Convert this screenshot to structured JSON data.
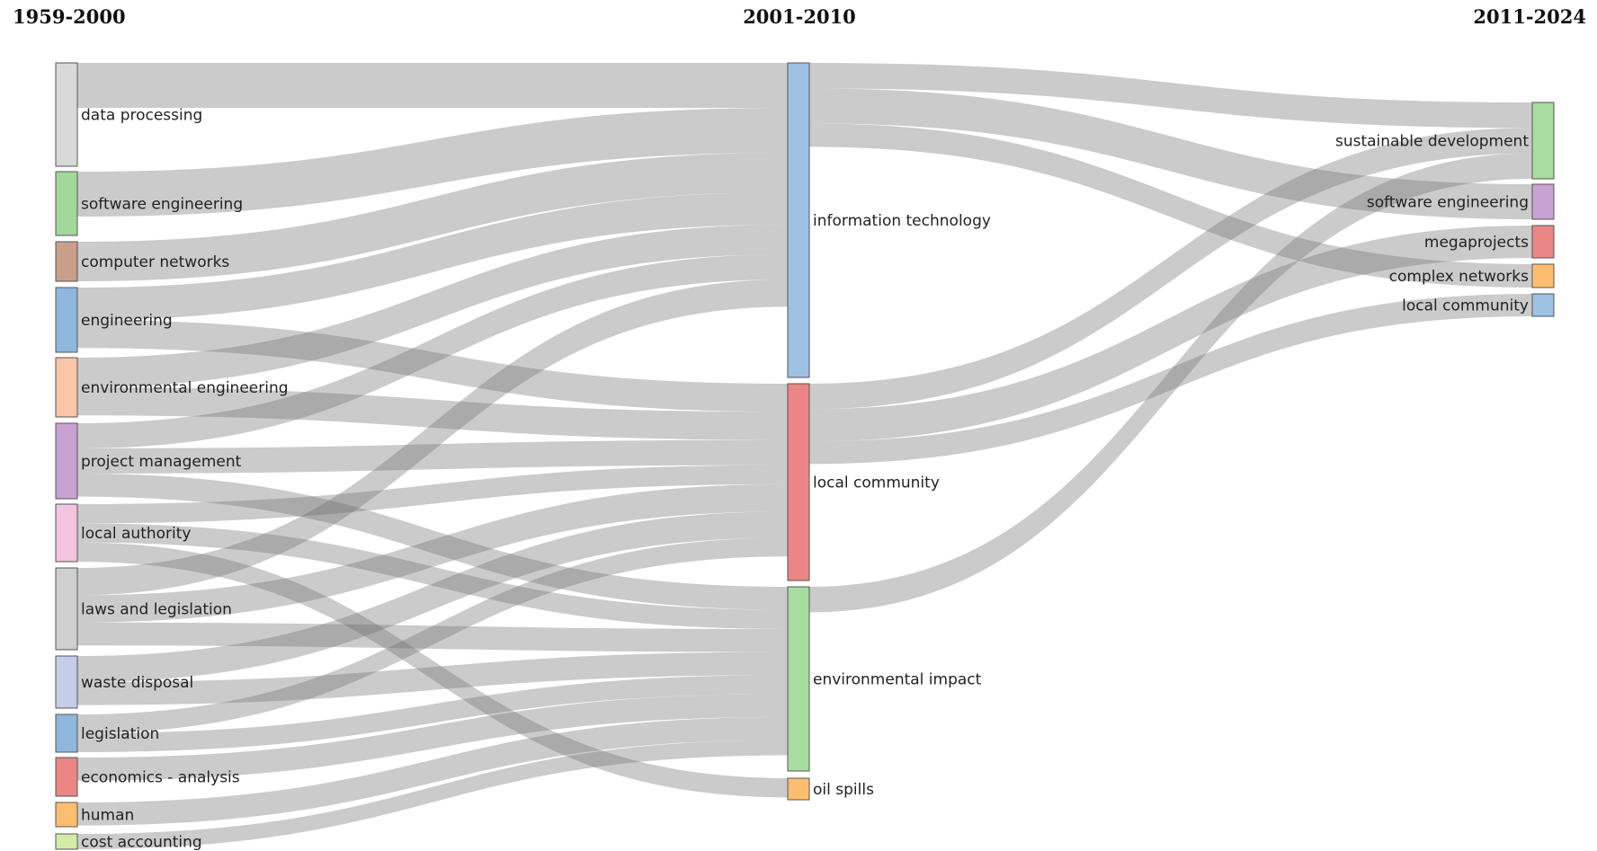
{
  "periods": [
    "1959-2000",
    "2001-2010",
    "2011-2024"
  ],
  "columns": [
    {
      "period": "1959-2000",
      "nodes": [
        {
          "label": "data processing",
          "color": "#d9d9d9"
        },
        {
          "label": "software engineering",
          "color": "#a1d99b"
        },
        {
          "label": "computer networks",
          "color": "#c8a08a"
        },
        {
          "label": "engineering",
          "color": "#8fb6dc"
        },
        {
          "label": "environmental engineering",
          "color": "#fcc5a8"
        },
        {
          "label": "project management",
          "color": "#c9a2d4"
        },
        {
          "label": "local authority",
          "color": "#f2c4e0"
        },
        {
          "label": "laws and legislation",
          "color": "#cfcfcf"
        },
        {
          "label": "waste disposal",
          "color": "#c5cde8"
        },
        {
          "label": "legislation",
          "color": "#8fb6dc"
        },
        {
          "label": "economics - analysis",
          "color": "#ec8585"
        },
        {
          "label": "human",
          "color": "#fdbf6f"
        },
        {
          "label": "cost accounting",
          "color": "#d2eca6"
        }
      ]
    },
    {
      "period": "2001-2010",
      "nodes": [
        {
          "label": "information technology",
          "color": "#9ec0e2"
        },
        {
          "label": "local community",
          "color": "#ec8585"
        },
        {
          "label": "environmental impact",
          "color": "#a8dca0"
        },
        {
          "label": "oil spills",
          "color": "#fdbf6f"
        }
      ]
    },
    {
      "period": "2011-2024",
      "nodes": [
        {
          "label": "sustainable development",
          "color": "#a8dca0"
        },
        {
          "label": "software engineering",
          "color": "#c9a2d4"
        },
        {
          "label": "megaprojects",
          "color": "#ec8585"
        },
        {
          "label": "complex networks",
          "color": "#fdbf6f"
        },
        {
          "label": "local community",
          "color": "#9ec0e2"
        }
      ]
    }
  ],
  "links": [
    {
      "source": "data processing",
      "target": "information technology"
    },
    {
      "source": "software engineering",
      "target": "information technology"
    },
    {
      "source": "computer networks",
      "target": "information technology"
    },
    {
      "source": "engineering",
      "target": "information technology"
    },
    {
      "source": "engineering",
      "target": "local community"
    },
    {
      "source": "environmental engineering",
      "target": "information technology"
    },
    {
      "source": "environmental engineering",
      "target": "local community"
    },
    {
      "source": "project management",
      "target": "information technology"
    },
    {
      "source": "project management",
      "target": "local community"
    },
    {
      "source": "project management",
      "target": "environmental impact"
    },
    {
      "source": "local authority",
      "target": "local community"
    },
    {
      "source": "local authority",
      "target": "environmental impact"
    },
    {
      "source": "local authority",
      "target": "oil spills"
    },
    {
      "source": "laws and legislation",
      "target": "information technology"
    },
    {
      "source": "laws and legislation",
      "target": "local community"
    },
    {
      "source": "laws and legislation",
      "target": "environmental impact"
    },
    {
      "source": "waste disposal",
      "target": "local community"
    },
    {
      "source": "waste disposal",
      "target": "environmental impact"
    },
    {
      "source": "legislation",
      "target": "local community"
    },
    {
      "source": "legislation",
      "target": "environmental impact"
    },
    {
      "source": "economics - analysis",
      "target": "environmental impact"
    },
    {
      "source": "human",
      "target": "environmental impact"
    },
    {
      "source": "cost accounting",
      "target": "environmental impact"
    },
    {
      "source": "information technology",
      "target": "sustainable development"
    },
    {
      "source": "information technology",
      "target": "software engineering"
    },
    {
      "source": "information technology",
      "target": "complex networks"
    },
    {
      "source": "local community",
      "target": "sustainable development"
    },
    {
      "source": "local community",
      "target": "megaprojects"
    },
    {
      "source": "local community",
      "target": "local community"
    },
    {
      "source": "environmental impact",
      "target": "sustainable development"
    }
  ]
}
